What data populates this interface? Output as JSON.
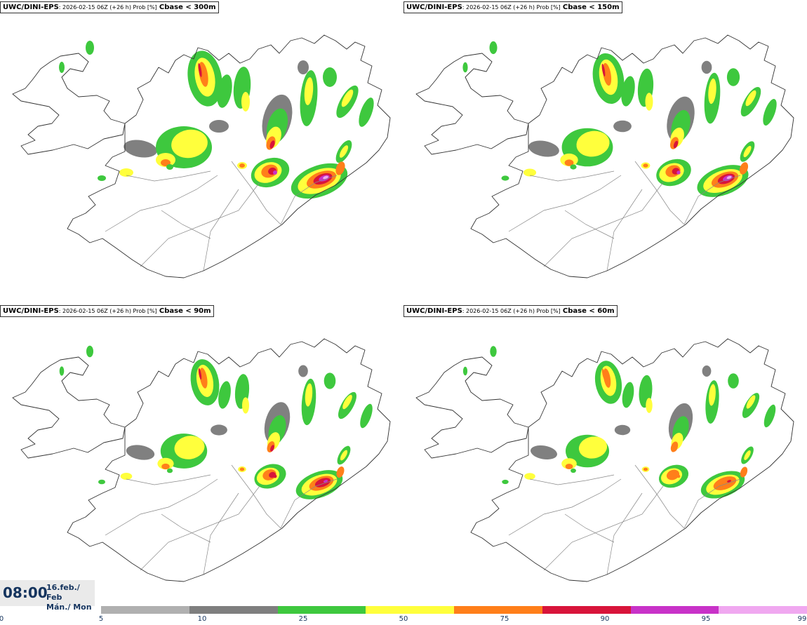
{
  "panels": [
    {
      "model": "UWC/DINI-EPS",
      "meta": ": 2026-02-15 06Z (+26 h) Prob [%]",
      "threshold": "Cbase < 300m",
      "intensity": 1.0
    },
    {
      "model": "UWC/DINI-EPS",
      "meta": ": 2026-02-15 06Z (+26 h) Prob [%]",
      "threshold": "Cbase < 150m",
      "intensity": 0.8
    },
    {
      "model": "UWC/DINI-EPS",
      "meta": ": 2026-02-15 06Z (+26 h) Prob [%]",
      "threshold": "Cbase < 90m",
      "intensity": 0.62
    },
    {
      "model": "UWC/DINI-EPS",
      "meta": ": 2026-02-15 06Z (+26 h) Prob [%]",
      "threshold": "Cbase < 60m",
      "intensity": 0.5
    }
  ],
  "valid_time": {
    "clock": "08:00",
    "date_line1": "16.feb./ Feb",
    "date_line2": "Mán./ Mon"
  },
  "legend": {
    "ticks": [
      "0",
      "5",
      "10",
      "25",
      "50",
      "75",
      "90",
      "95",
      "99"
    ],
    "colors": [
      "#b0b0b0",
      "#7f7f7f",
      "#3ec83e",
      "#ffff3c",
      "#ff7f1a",
      "#d8143a",
      "#c832c8",
      "#f0a8f0"
    ]
  },
  "map_colors": {
    "coast": "#333333",
    "border": "#888888",
    "gray_light": "#b3b3b3",
    "gray_dark": "#808080",
    "green": "#3ec83e",
    "yellow": "#ffff3c",
    "orange": "#ff7f1a",
    "red": "#d8143a",
    "magenta": "#c832c8",
    "pink": "#f0a8f0"
  }
}
